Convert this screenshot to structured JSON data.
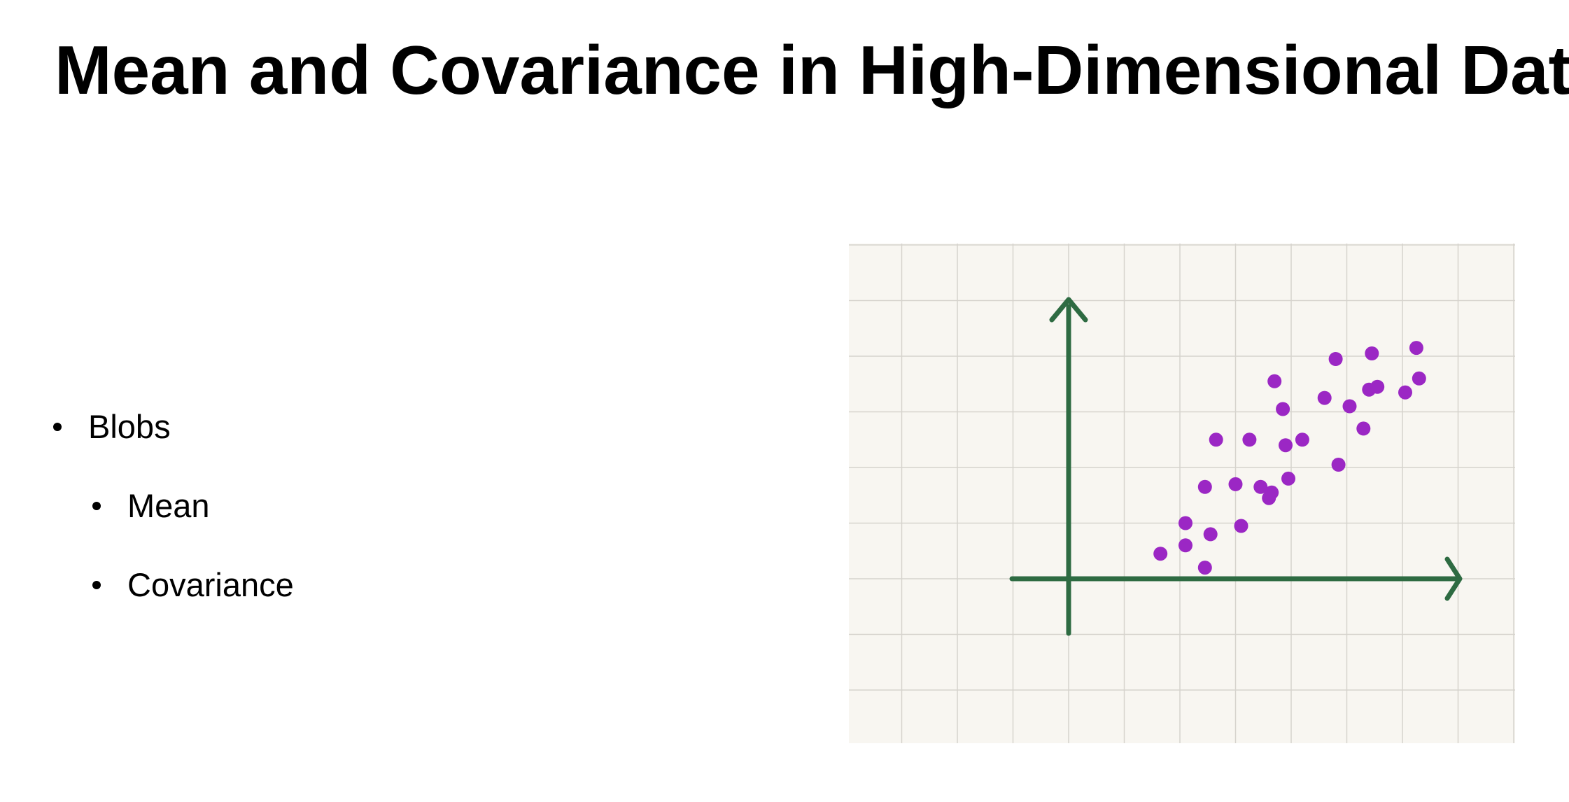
{
  "slide": {
    "title": "Mean and Covariance in High-Dimensional Data",
    "bullets": [
      {
        "level": 1,
        "text": "Blobs"
      },
      {
        "level": 2,
        "text": "Mean"
      },
      {
        "level": 2,
        "text": "Covariance"
      }
    ]
  },
  "figure": {
    "paper_color": "#f8f6f1",
    "grid_color": "#d6d3cd",
    "axis_color": "#2e6b42",
    "point_color": "#9b27c4",
    "grid": true,
    "arrowheads": [
      "x-axis-right",
      "y-axis-top"
    ]
  },
  "chart_data": {
    "type": "scatter",
    "title": "",
    "xlabel": "",
    "ylabel": "",
    "xlim": [
      -1,
      7
    ],
    "ylim": [
      -1,
      5
    ],
    "points": [
      {
        "x": 1.65,
        "y": 0.45
      },
      {
        "x": 2.1,
        "y": 0.6
      },
      {
        "x": 2.1,
        "y": 1.0
      },
      {
        "x": 2.45,
        "y": 0.2
      },
      {
        "x": 2.55,
        "y": 0.8
      },
      {
        "x": 2.45,
        "y": 1.65
      },
      {
        "x": 2.65,
        "y": 2.5
      },
      {
        "x": 3.0,
        "y": 1.7
      },
      {
        "x": 3.1,
        "y": 0.95
      },
      {
        "x": 3.25,
        "y": 2.5
      },
      {
        "x": 3.45,
        "y": 1.65
      },
      {
        "x": 3.6,
        "y": 1.45
      },
      {
        "x": 3.65,
        "y": 1.55
      },
      {
        "x": 3.7,
        "y": 3.55
      },
      {
        "x": 3.85,
        "y": 3.05
      },
      {
        "x": 3.9,
        "y": 2.4
      },
      {
        "x": 3.95,
        "y": 1.8
      },
      {
        "x": 4.2,
        "y": 2.5
      },
      {
        "x": 4.6,
        "y": 3.25
      },
      {
        "x": 4.8,
        "y": 3.95
      },
      {
        "x": 4.85,
        "y": 2.05
      },
      {
        "x": 5.05,
        "y": 3.1
      },
      {
        "x": 5.3,
        "y": 2.7
      },
      {
        "x": 5.4,
        "y": 3.4
      },
      {
        "x": 5.45,
        "y": 4.05
      },
      {
        "x": 5.55,
        "y": 3.45
      },
      {
        "x": 6.05,
        "y": 3.35
      },
      {
        "x": 6.25,
        "y": 4.15
      },
      {
        "x": 6.3,
        "y": 3.6
      }
    ]
  }
}
